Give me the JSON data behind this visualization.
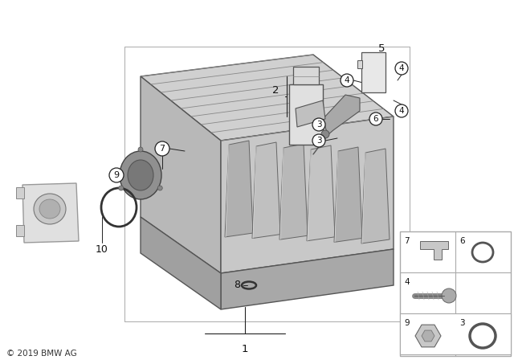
{
  "bg_color": "#ffffff",
  "copyright": "© 2019 BMW AG",
  "diagram_id": "142265",
  "fig_width": 6.4,
  "fig_height": 4.48,
  "dpi": 100,
  "manifold_color": "#c0c0c0",
  "manifold_dark": "#909090",
  "manifold_light": "#d8d8d8",
  "line_color": "#222222",
  "part_line_color": "#444444"
}
